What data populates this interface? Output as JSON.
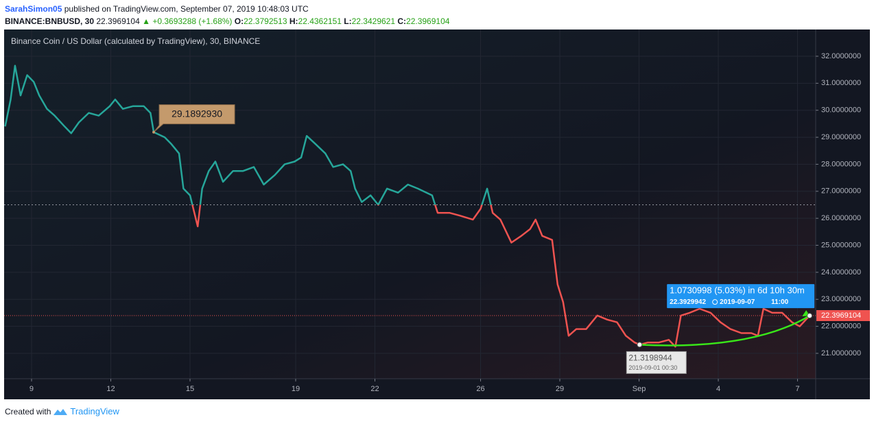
{
  "header": {
    "author": "SarahSimon05",
    "published": "published on TradingView.com, September 07, 2019 10:48:03 UTC",
    "symbol": "BINANCE:BNBUSD, 30",
    "price": "22.3969104",
    "change": "+0.3693288 (+1.68%)",
    "o_label": "O:",
    "o": "22.3792513",
    "h_label": "H:",
    "h": "22.4362151",
    "l_label": "L:",
    "l": "22.3429621",
    "c_label": "C:",
    "c": "22.3969104"
  },
  "footer": {
    "created": "Created with",
    "brand": "TradingView"
  },
  "chart_data": {
    "type": "baseline",
    "title": "Binance Coin / US Dollar (calculated by TradingView), 30, BINANCE",
    "x": [
      "2019-08-08 00:00",
      "2019-08-08 05:00",
      "2019-08-08 09:00",
      "2019-08-08 14:00",
      "2019-08-08 20:00",
      "2019-08-09 02:00",
      "2019-08-09 07:00",
      "2019-08-09 14:00",
      "2019-08-09 21:00",
      "2019-08-10 06:00",
      "2019-08-10 12:00",
      "2019-08-10 19:00",
      "2019-08-11 04:00",
      "2019-08-11 13:00",
      "2019-08-11 23:00",
      "2019-08-12 04:00",
      "2019-08-12 11:00",
      "2019-08-12 20:00",
      "2019-08-13 06:00",
      "2019-08-13 12:00",
      "2019-08-13 15:00",
      "2019-08-14 01:00",
      "2019-08-14 07:00",
      "2019-08-14 14:00",
      "2019-08-14 18:00",
      "2019-08-15 00:00",
      "2019-08-15 07:00",
      "2019-08-15 11:00",
      "2019-08-15 17:00",
      "2019-08-15 23:00",
      "2019-08-16 06:00",
      "2019-08-16 15:00",
      "2019-08-17 00:00",
      "2019-08-17 10:00",
      "2019-08-17 19:00",
      "2019-08-18 05:00",
      "2019-08-18 14:00",
      "2019-08-18 23:00",
      "2019-08-19 05:00",
      "2019-08-19 10:00",
      "2019-08-19 18:00",
      "2019-08-20 03:00",
      "2019-08-20 10:00",
      "2019-08-20 19:00",
      "2019-08-21 02:00",
      "2019-08-21 06:00",
      "2019-08-21 12:00",
      "2019-08-21 20:00",
      "2019-08-22 03:00",
      "2019-08-22 11:00",
      "2019-08-22 21:00",
      "2019-08-23 06:00",
      "2019-08-23 15:00",
      "2019-08-24 04:00",
      "2019-08-24 09:00",
      "2019-08-24 20:00",
      "2019-08-25 05:00",
      "2019-08-25 17:00",
      "2019-08-26 00:00",
      "2019-08-26 06:00",
      "2019-08-26 11:00",
      "2019-08-26 18:00",
      "2019-08-27 04:00",
      "2019-08-27 13:00",
      "2019-08-27 21:00",
      "2019-08-28 02:00",
      "2019-08-28 08:00",
      "2019-08-28 17:00",
      "2019-08-28 22:00",
      "2019-08-29 03:00",
      "2019-08-29 08:00",
      "2019-08-29 15:00",
      "2019-08-30 00:00",
      "2019-08-30 10:00",
      "2019-08-30 19:00",
      "2019-08-31 04:00",
      "2019-08-31 12:00",
      "2019-08-31 20:00",
      "2019-09-01 00:30",
      "2019-09-01 08:00",
      "2019-09-01 18:00",
      "2019-09-02 03:00",
      "2019-09-02 09:00",
      "2019-09-02 14:00",
      "2019-09-02 22:00",
      "2019-09-03 07:00",
      "2019-09-03 17:00",
      "2019-09-04 02:00",
      "2019-09-04 11:00",
      "2019-09-04 21:00",
      "2019-09-05 06:00",
      "2019-09-05 12:00",
      "2019-09-05 17:00",
      "2019-09-06 01:00",
      "2019-09-06 10:00",
      "2019-09-06 19:00",
      "2019-09-07 02:00",
      "2019-09-07 11:00"
    ],
    "values": [
      29.4,
      30.4,
      31.65,
      30.55,
      31.3,
      31.05,
      30.55,
      30.05,
      29.8,
      29.4,
      29.15,
      29.55,
      29.9,
      29.8,
      30.15,
      30.4,
      30.05,
      30.15,
      30.15,
      29.9,
      29.189293,
      29.0,
      28.75,
      28.4,
      27.1,
      26.85,
      25.7,
      27.1,
      27.75,
      28.1,
      27.35,
      27.75,
      27.75,
      27.9,
      27.25,
      27.6,
      28.0,
      28.1,
      28.25,
      29.05,
      28.75,
      28.4,
      27.9,
      28.0,
      27.75,
      27.1,
      26.6,
      26.85,
      26.5,
      27.1,
      26.95,
      27.25,
      27.1,
      26.85,
      26.2,
      26.2,
      26.1,
      25.95,
      26.35,
      27.1,
      26.2,
      25.95,
      25.1,
      25.35,
      25.6,
      25.95,
      25.35,
      25.2,
      23.55,
      22.9,
      21.65,
      21.9,
      21.9,
      22.4,
      22.25,
      22.15,
      21.65,
      21.4,
      21.3198944,
      21.4,
      21.4,
      21.5,
      21.25,
      22.4,
      22.5,
      22.65,
      22.5,
      22.15,
      21.9,
      21.75,
      21.75,
      21.65,
      22.65,
      22.5,
      22.5,
      22.15,
      22.0,
      22.3969104
    ],
    "baseline": 26.5,
    "up_color": "#26a69a",
    "down_color": "#ef5350",
    "xlim": [
      "2019-08-07 23:04",
      "2019-09-07 16:30"
    ],
    "xticks": [
      {
        "value": "2019-08-09 00:00",
        "label": "9"
      },
      {
        "value": "2019-08-12 00:00",
        "label": "12"
      },
      {
        "value": "2019-08-15 00:00",
        "label": "15"
      },
      {
        "value": "2019-08-19 00:00",
        "label": "19"
      },
      {
        "value": "2019-08-22 00:00",
        "label": "22"
      },
      {
        "value": "2019-08-26 00:00",
        "label": "26"
      },
      {
        "value": "2019-08-29 00:00",
        "label": "29"
      },
      {
        "value": "2019-09-01 00:00",
        "label": "Sep"
      },
      {
        "value": "2019-09-04 00:00",
        "label": "4"
      },
      {
        "value": "2019-09-07 00:00",
        "label": "7"
      }
    ],
    "ylim": [
      20.06,
      32.99
    ],
    "yticks": [
      {
        "value": 21,
        "label": "21.0000000"
      },
      {
        "value": 22,
        "label": "22.0000000"
      },
      {
        "value": 23,
        "label": "23.0000000"
      },
      {
        "value": 24,
        "label": "24.0000000"
      },
      {
        "value": 25,
        "label": "25.0000000"
      },
      {
        "value": 26,
        "label": "26.0000000"
      },
      {
        "value": 27,
        "label": "27.0000000"
      },
      {
        "value": 28,
        "label": "28.0000000"
      },
      {
        "value": 29,
        "label": "29.0000000"
      },
      {
        "value": 30,
        "label": "30.0000000"
      },
      {
        "value": 31,
        "label": "31.0000000"
      },
      {
        "value": 32,
        "label": "32.0000000"
      }
    ],
    "grid": true,
    "last_value": 22.3969104,
    "callout": {
      "x": "2019-08-13 15:00",
      "value": 29.189293,
      "label": "29.1892930"
    },
    "measure": {
      "text": "1.0730998 (5.03%) in 6d 10h 30m",
      "start_x": "2019-09-01 00:30",
      "start_value": 21.3198944,
      "start_date": "2019-09-01 00:30",
      "end_x": "2019-09-07 11:00",
      "end_value": 22.3929942,
      "end_date": "2019-09-07",
      "end_time": "11:00"
    }
  }
}
